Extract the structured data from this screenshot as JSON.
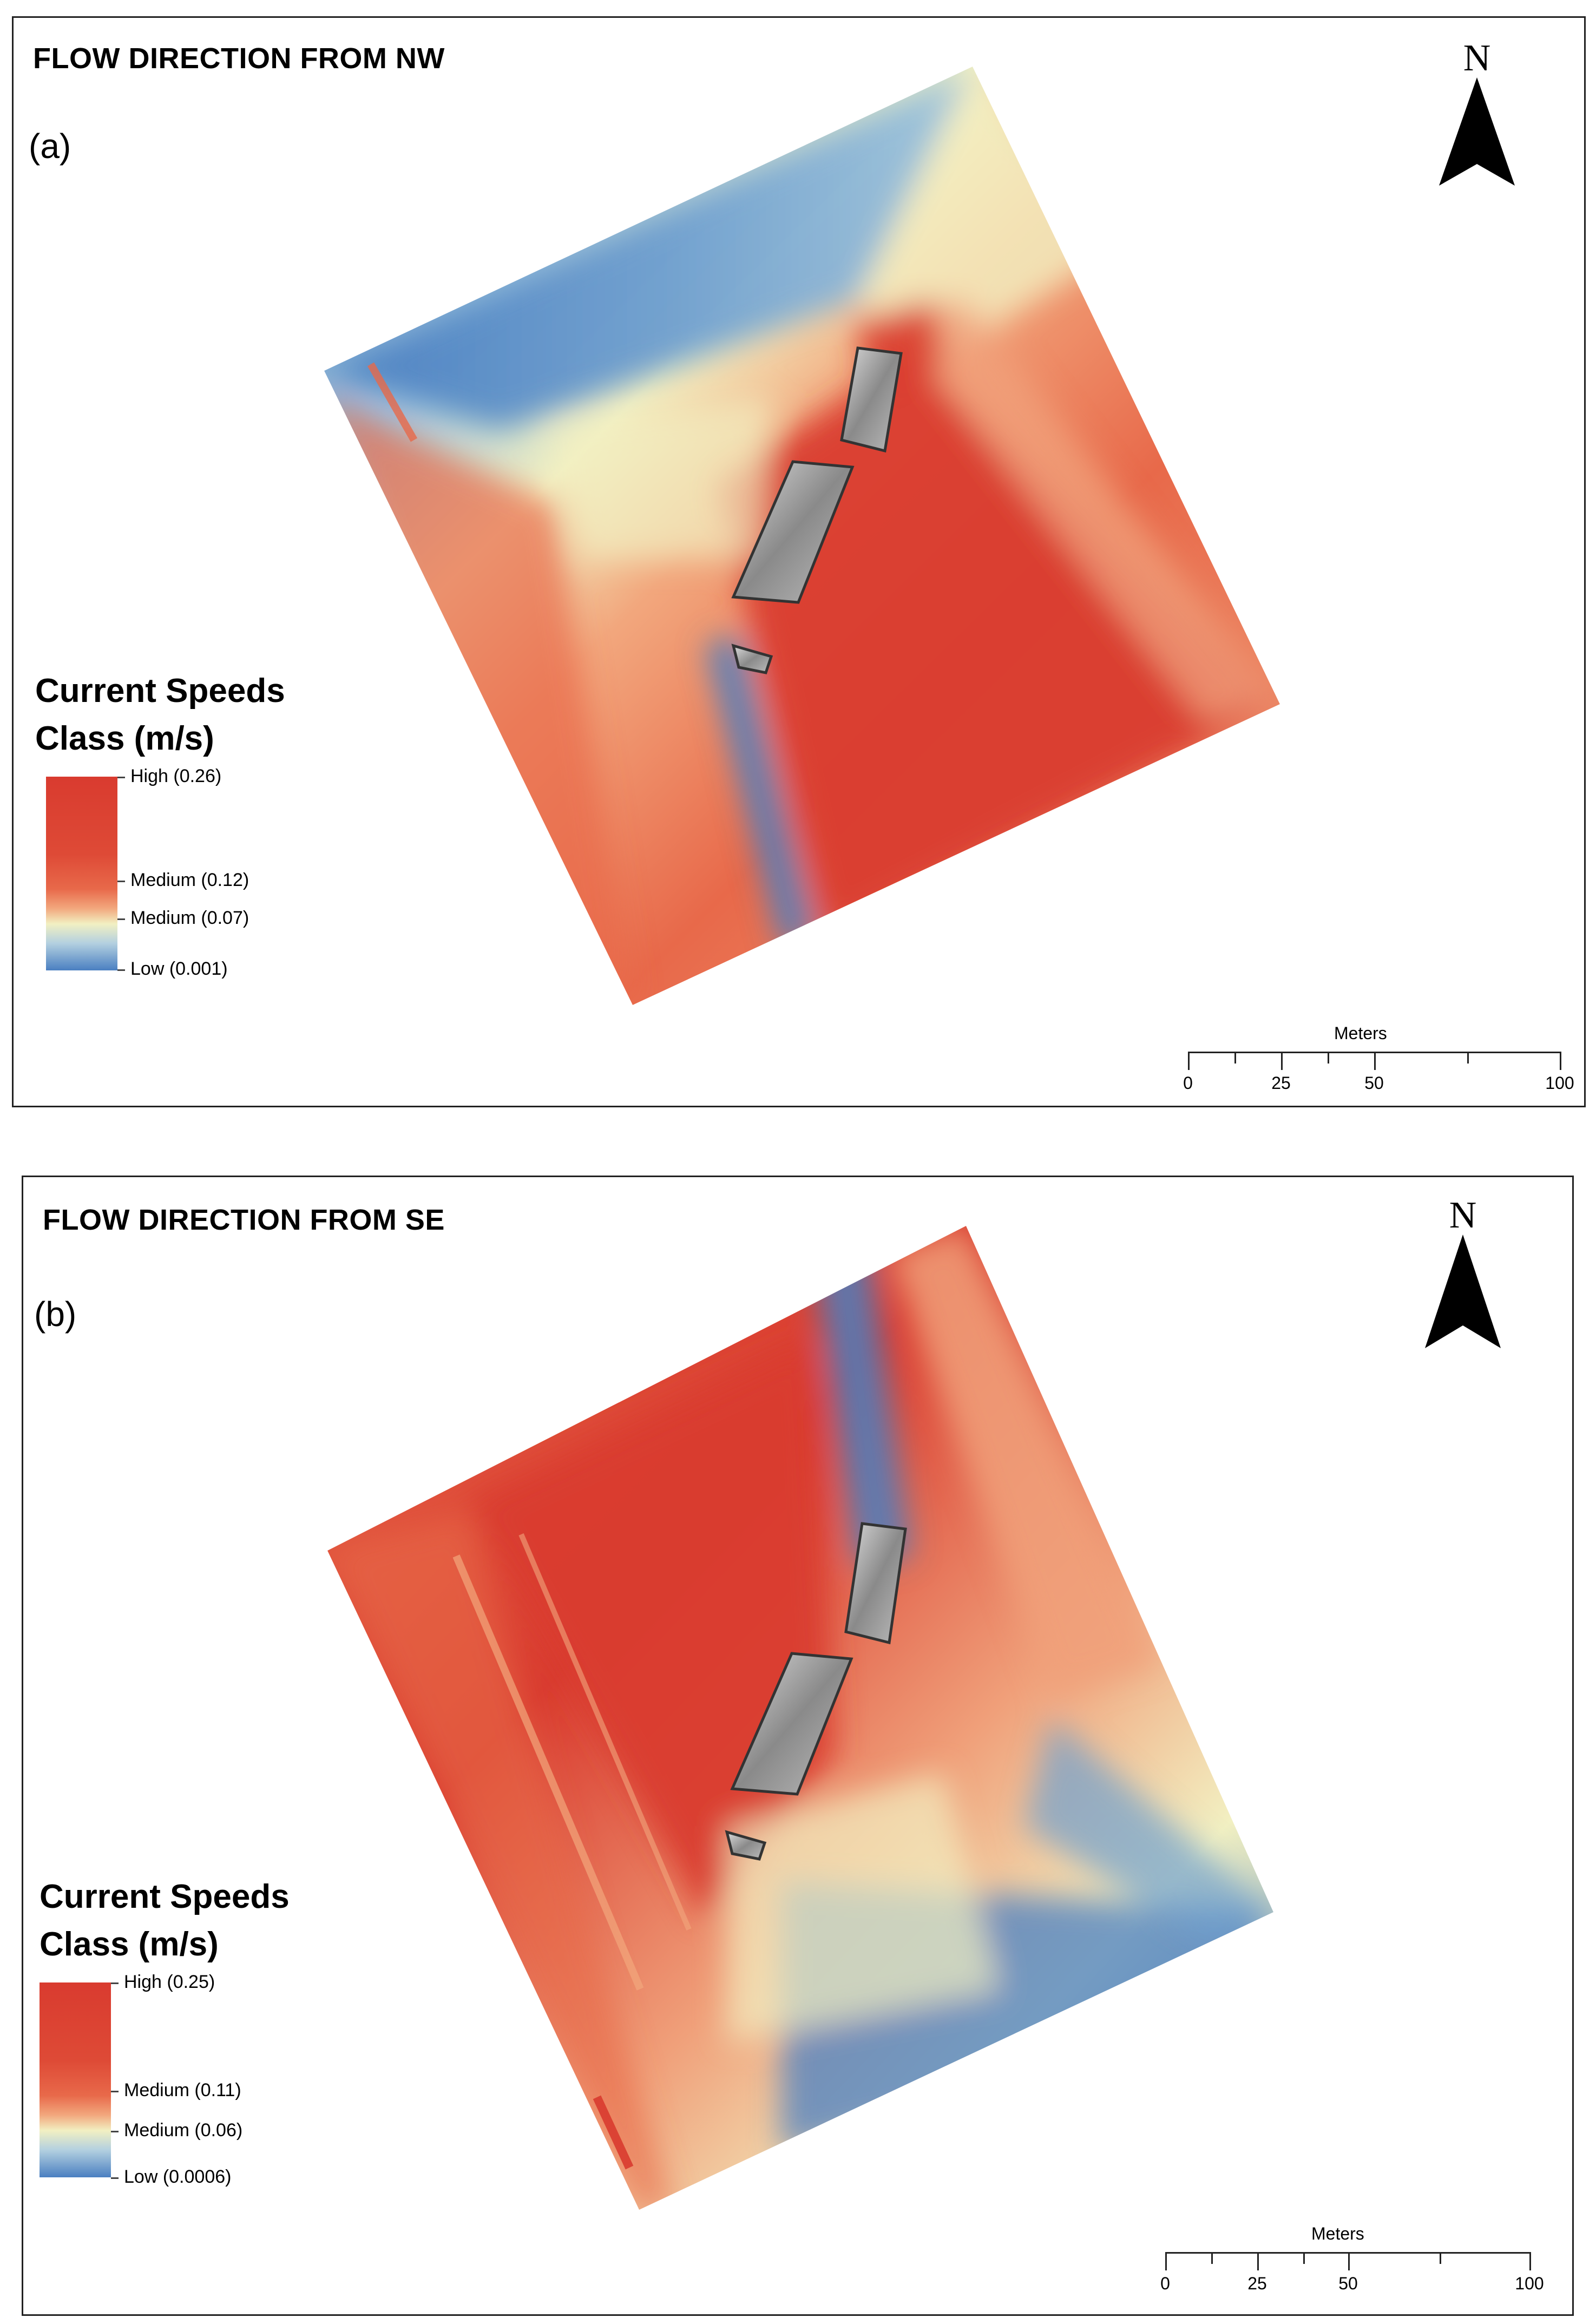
{
  "panels": [
    {
      "title": "FLOW DIRECTION FROM NW",
      "label": "(a)",
      "north_label": "N",
      "legend": {
        "title": "Current Speeds",
        "subtitle": "Class (m/s)",
        "entries": [
          "High (0.26)",
          "Medium (0.12)",
          "Medium (0.07)",
          "Low (0.001)"
        ]
      },
      "scalebar": {
        "unit": "Meters",
        "ticks": [
          "0",
          "25",
          "50",
          "100"
        ]
      }
    },
    {
      "title": "FLOW DIRECTION FROM SE",
      "label": "(b)",
      "north_label": "N",
      "legend": {
        "title": "Current Speeds",
        "subtitle": "Class (m/s)",
        "entries": [
          "High (0.25)",
          "Medium (0.11)",
          "Medium (0.06)",
          "Low (0.0006)"
        ]
      },
      "scalebar": {
        "unit": "Meters",
        "ticks": [
          "0",
          "25",
          "50",
          "100"
        ]
      }
    }
  ],
  "colors": {
    "high": "#d93b2f",
    "medium_high": "#f2a77d",
    "medium_low": "#f2f0c2",
    "low": "#4a7fc1",
    "wreck": "#9a9a9a"
  },
  "icons": {
    "north_arrow": "north-arrow-icon",
    "wreck": "shipwreck-icon"
  }
}
